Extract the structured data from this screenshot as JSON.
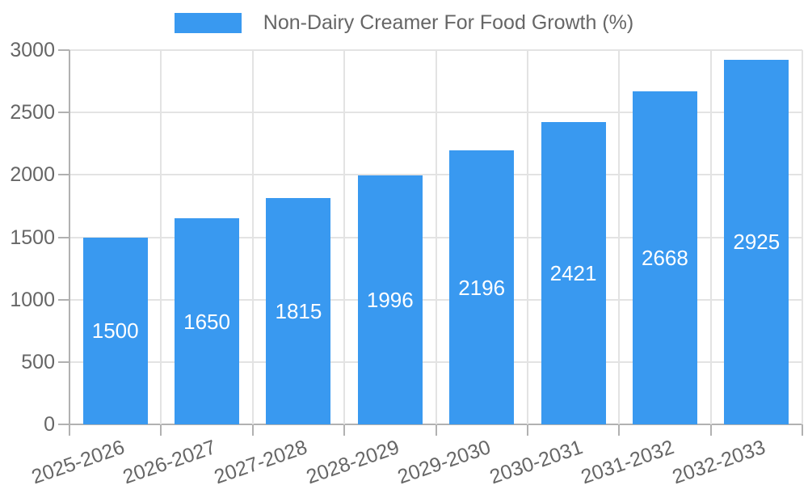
{
  "chart_data": {
    "type": "bar",
    "title": "Non-Dairy Creamer For Food Growth (%)",
    "legend": {
      "label": "Non-Dairy Creamer For Food Growth (%)",
      "position": "top"
    },
    "categories": [
      "2025-2026",
      "2026-2027",
      "2027-2028",
      "2028-2029",
      "2029-2030",
      "2030-2031",
      "2031-2032",
      "2032-2033"
    ],
    "series": [
      {
        "name": "Non-Dairy Creamer For Food Growth (%)",
        "values": [
          1500,
          1650,
          1815,
          1996,
          2196,
          2421,
          2668,
          2925
        ]
      }
    ],
    "xlabel": "",
    "ylabel": "",
    "ylim": [
      0,
      3000
    ],
    "ytick_step": 500,
    "yticks": [
      0,
      500,
      1000,
      1500,
      2000,
      2500,
      3000
    ],
    "grid": true,
    "value_labels_shown": true,
    "colors": {
      "bar": "#3999F0",
      "axis_text": "#666666",
      "value_label_text": "#FFFFFF",
      "gridline": "#E3E3E3",
      "axis_line": "#B1B1B1",
      "background": "#FFFFFF"
    }
  }
}
